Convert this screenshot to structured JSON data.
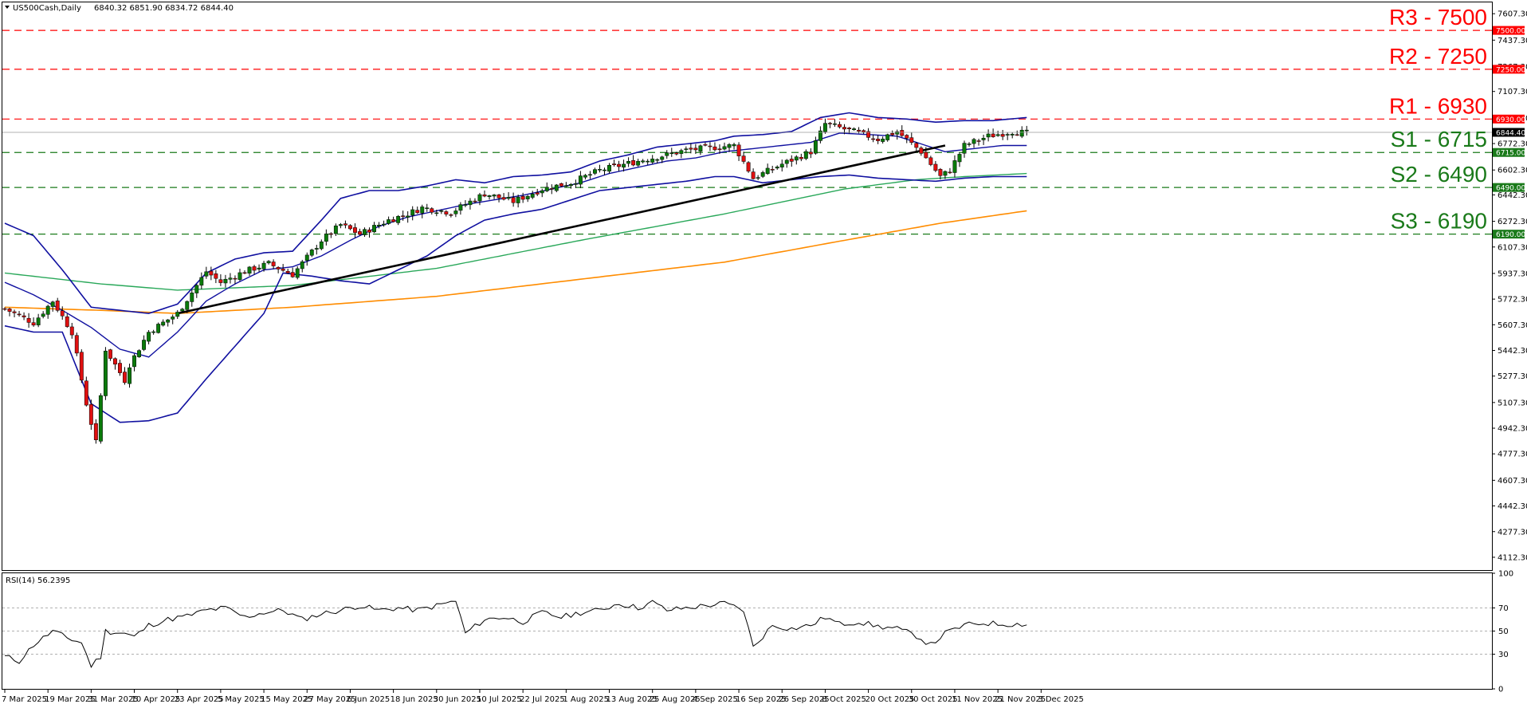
{
  "header": {
    "symbol": "US500Cash,Daily",
    "ohlc": "6840.32 6851.90 6834.72 6844.40"
  },
  "rsi_header": "RSI(14) 56.2395",
  "colors": {
    "resistance": "#ff0000",
    "support": "#1a7a1a",
    "bull": "#0a7a0a",
    "bear": "#e01010",
    "bollinger": "#1010a0",
    "ma_green": "#2aa85a",
    "ma_orange": "#ff8c00",
    "trendline": "#000000",
    "last_price_tag": "#000000"
  },
  "chart_data": {
    "type": "candlestick",
    "price_axis": {
      "range": [
        4030,
        7680
      ],
      "ticks": [
        "7607.30",
        "7437.30",
        "7267.30",
        "7107.30",
        "6937.30",
        "6772.30",
        "6602.30",
        "6442.30",
        "6272.30",
        "6107.30",
        "5937.30",
        "5772.30",
        "5607.30",
        "5442.30",
        "5277.30",
        "5107.30",
        "4942.30",
        "4777.30",
        "4607.30",
        "4442.30",
        "4277.30",
        "4112.30"
      ]
    },
    "date_labels": [
      "7 Mar 2025",
      "19 Mar 2025",
      "31 Mar 2025",
      "10 Apr 2025",
      "23 Apr 2025",
      "5 May 2025",
      "15 May 2025",
      "27 May 2025",
      "6 Jun 2025",
      "18 Jun 2025",
      "30 Jun 2025",
      "10 Jul 2025",
      "22 Jul 2025",
      "1 Aug 2025",
      "13 Aug 2025",
      "25 Aug 2025",
      "4 Sep 2025",
      "16 Sep 2025",
      "26 Sep 2025",
      "8 Oct 2025",
      "20 Oct 2025",
      "30 Oct 2025",
      "11 Nov 2025",
      "21 Nov 2025",
      "3 Dec 2025"
    ],
    "last_price": {
      "value": 6844.4,
      "label": "6844.40"
    },
    "levels": [
      {
        "name": "R3",
        "text": "R3 - 7500",
        "value": 7500,
        "tag": "7500.00",
        "kind": "resistance"
      },
      {
        "name": "R2",
        "text": "R2 - 7250",
        "value": 7250,
        "tag": "7250.00",
        "kind": "resistance"
      },
      {
        "name": "R1",
        "text": "R1 - 6930",
        "value": 6930,
        "tag": "6930.00",
        "kind": "resistance"
      },
      {
        "name": "S1",
        "text": "S1 - 6715",
        "value": 6715,
        "tag": "6715.00",
        "kind": "support"
      },
      {
        "name": "S2",
        "text": "S2 - 6490",
        "value": 6490,
        "tag": "6490.00",
        "kind": "support"
      },
      {
        "name": "S3",
        "text": "S3 - 6190",
        "value": 6190,
        "tag": "6190.00",
        "kind": "support"
      }
    ],
    "trendline": {
      "from": {
        "bar": 36,
        "price": 5680
      },
      "to": {
        "bar": 196,
        "price": 6760
      }
    },
    "close_anchors": [
      [
        0,
        5710
      ],
      [
        6,
        5620
      ],
      [
        10,
        5760
      ],
      [
        14,
        5560
      ],
      [
        17,
        5100
      ],
      [
        19,
        4850
      ],
      [
        21,
        5450
      ],
      [
        25,
        5250
      ],
      [
        26,
        5350
      ],
      [
        30,
        5560
      ],
      [
        36,
        5680
      ],
      [
        42,
        5950
      ],
      [
        45,
        5880
      ],
      [
        50,
        5950
      ],
      [
        55,
        6000
      ],
      [
        60,
        5930
      ],
      [
        66,
        6150
      ],
      [
        70,
        6250
      ],
      [
        74,
        6190
      ],
      [
        80,
        6280
      ],
      [
        84,
        6320
      ],
      [
        87,
        6360
      ],
      [
        93,
        6330
      ],
      [
        100,
        6450
      ],
      [
        106,
        6400
      ],
      [
        112,
        6480
      ],
      [
        118,
        6520
      ],
      [
        124,
        6600
      ],
      [
        132,
        6660
      ],
      [
        138,
        6700
      ],
      [
        142,
        6730
      ],
      [
        152,
        6760
      ],
      [
        156,
        6550
      ],
      [
        162,
        6640
      ],
      [
        168,
        6720
      ],
      [
        171,
        6900
      ],
      [
        178,
        6840
      ],
      [
        182,
        6800
      ],
      [
        186,
        6850
      ],
      [
        191,
        6720
      ],
      [
        195,
        6560
      ],
      [
        197,
        6600
      ],
      [
        200,
        6760
      ],
      [
        205,
        6820
      ],
      [
        210,
        6850
      ],
      [
        213,
        6840
      ]
    ],
    "bollinger_upper": [
      [
        0,
        6260
      ],
      [
        6,
        6180
      ],
      [
        12,
        5960
      ],
      [
        18,
        5720
      ],
      [
        24,
        5700
      ],
      [
        30,
        5680
      ],
      [
        36,
        5740
      ],
      [
        42,
        5940
      ],
      [
        48,
        6030
      ],
      [
        54,
        6070
      ],
      [
        60,
        6080
      ],
      [
        66,
        6280
      ],
      [
        70,
        6420
      ],
      [
        76,
        6470
      ],
      [
        82,
        6470
      ],
      [
        88,
        6500
      ],
      [
        94,
        6540
      ],
      [
        100,
        6520
      ],
      [
        106,
        6560
      ],
      [
        112,
        6570
      ],
      [
        118,
        6590
      ],
      [
        124,
        6660
      ],
      [
        130,
        6700
      ],
      [
        136,
        6750
      ],
      [
        142,
        6770
      ],
      [
        148,
        6790
      ],
      [
        152,
        6820
      ],
      [
        158,
        6830
      ],
      [
        164,
        6850
      ],
      [
        170,
        6940
      ],
      [
        176,
        6970
      ],
      [
        182,
        6940
      ],
      [
        188,
        6930
      ],
      [
        194,
        6910
      ],
      [
        200,
        6920
      ],
      [
        206,
        6920
      ],
      [
        213,
        6940
      ]
    ],
    "bollinger_middle": [
      [
        0,
        5880
      ],
      [
        6,
        5800
      ],
      [
        12,
        5700
      ],
      [
        18,
        5590
      ],
      [
        24,
        5450
      ],
      [
        30,
        5400
      ],
      [
        36,
        5560
      ],
      [
        42,
        5760
      ],
      [
        48,
        5870
      ],
      [
        54,
        5960
      ],
      [
        60,
        5980
      ],
      [
        66,
        6050
      ],
      [
        72,
        6150
      ],
      [
        78,
        6240
      ],
      [
        84,
        6300
      ],
      [
        90,
        6340
      ],
      [
        96,
        6380
      ],
      [
        102,
        6410
      ],
      [
        108,
        6440
      ],
      [
        114,
        6480
      ],
      [
        120,
        6520
      ],
      [
        126,
        6580
      ],
      [
        132,
        6620
      ],
      [
        138,
        6660
      ],
      [
        144,
        6680
      ],
      [
        150,
        6720
      ],
      [
        156,
        6740
      ],
      [
        162,
        6760
      ],
      [
        168,
        6780
      ],
      [
        174,
        6840
      ],
      [
        180,
        6830
      ],
      [
        186,
        6820
      ],
      [
        190,
        6780
      ],
      [
        196,
        6720
      ],
      [
        202,
        6740
      ],
      [
        208,
        6760
      ],
      [
        213,
        6760
      ]
    ],
    "bollinger_lower": [
      [
        0,
        5600
      ],
      [
        6,
        5560
      ],
      [
        12,
        5560
      ],
      [
        18,
        5100
      ],
      [
        24,
        4980
      ],
      [
        30,
        4990
      ],
      [
        36,
        5040
      ],
      [
        42,
        5260
      ],
      [
        48,
        5470
      ],
      [
        54,
        5680
      ],
      [
        58,
        5940
      ],
      [
        64,
        5920
      ],
      [
        70,
        5890
      ],
      [
        76,
        5870
      ],
      [
        82,
        5960
      ],
      [
        88,
        6050
      ],
      [
        94,
        6180
      ],
      [
        100,
        6280
      ],
      [
        106,
        6320
      ],
      [
        112,
        6350
      ],
      [
        118,
        6410
      ],
      [
        124,
        6470
      ],
      [
        130,
        6490
      ],
      [
        136,
        6510
      ],
      [
        142,
        6530
      ],
      [
        148,
        6560
      ],
      [
        152,
        6560
      ],
      [
        158,
        6520
      ],
      [
        164,
        6540
      ],
      [
        170,
        6560
      ],
      [
        176,
        6570
      ],
      [
        182,
        6550
      ],
      [
        188,
        6540
      ],
      [
        194,
        6530
      ],
      [
        200,
        6550
      ],
      [
        206,
        6560
      ],
      [
        213,
        6560
      ]
    ],
    "ma_green": [
      [
        0,
        5940
      ],
      [
        20,
        5870
      ],
      [
        36,
        5830
      ],
      [
        60,
        5860
      ],
      [
        90,
        5970
      ],
      [
        120,
        6150
      ],
      [
        150,
        6320
      ],
      [
        175,
        6480
      ],
      [
        190,
        6540
      ],
      [
        200,
        6560
      ],
      [
        213,
        6580
      ]
    ],
    "ma_orange": [
      [
        0,
        5720
      ],
      [
        20,
        5700
      ],
      [
        36,
        5680
      ],
      [
        60,
        5720
      ],
      [
        90,
        5790
      ],
      [
        120,
        5900
      ],
      [
        150,
        6010
      ],
      [
        175,
        6150
      ],
      [
        195,
        6260
      ],
      [
        213,
        6340
      ]
    ],
    "rsi": {
      "range": [
        0,
        100
      ],
      "levels": [
        70,
        50,
        30
      ],
      "ticks": [
        "100",
        "70",
        "50",
        "30",
        "0"
      ],
      "last_value": 56.2395,
      "anchors": [
        [
          0,
          28
        ],
        [
          3,
          24
        ],
        [
          6,
          38
        ],
        [
          10,
          50
        ],
        [
          13,
          44
        ],
        [
          16,
          40
        ],
        [
          18,
          20
        ],
        [
          20,
          28
        ],
        [
          21,
          50
        ],
        [
          25,
          48
        ],
        [
          27,
          45
        ],
        [
          30,
          55
        ],
        [
          34,
          60
        ],
        [
          38,
          63
        ],
        [
          42,
          68
        ],
        [
          46,
          70
        ],
        [
          50,
          62
        ],
        [
          54,
          66
        ],
        [
          58,
          68
        ],
        [
          62,
          60
        ],
        [
          66,
          65
        ],
        [
          70,
          68
        ],
        [
          74,
          72
        ],
        [
          78,
          68
        ],
        [
          82,
          70
        ],
        [
          86,
          68
        ],
        [
          90,
          72
        ],
        [
          94,
          76
        ],
        [
          96,
          48
        ],
        [
          100,
          60
        ],
        [
          104,
          62
        ],
        [
          108,
          58
        ],
        [
          112,
          66
        ],
        [
          116,
          62
        ],
        [
          120,
          66
        ],
        [
          124,
          68
        ],
        [
          128,
          74
        ],
        [
          132,
          70
        ],
        [
          135,
          75
        ],
        [
          138,
          68
        ],
        [
          142,
          70
        ],
        [
          146,
          72
        ],
        [
          150,
          74
        ],
        [
          154,
          68
        ],
        [
          156,
          36
        ],
        [
          160,
          55
        ],
        [
          164,
          52
        ],
        [
          168,
          55
        ],
        [
          171,
          62
        ],
        [
          174,
          56
        ],
        [
          178,
          58
        ],
        [
          182,
          54
        ],
        [
          186,
          52
        ],
        [
          190,
          46
        ],
        [
          193,
          38
        ],
        [
          196,
          48
        ],
        [
          200,
          55
        ],
        [
          204,
          57
        ],
        [
          208,
          56
        ],
        [
          213,
          56
        ]
      ]
    }
  }
}
